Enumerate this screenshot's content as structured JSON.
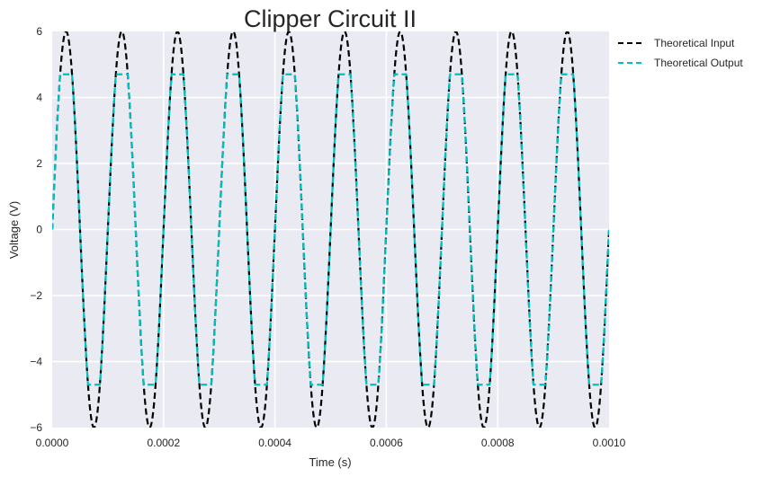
{
  "chart_data": {
    "type": "line",
    "title": "Clipper Circuit II",
    "xlabel": "Time (s)",
    "ylabel": "Voltage (V)",
    "xlim": [
      0,
      0.001
    ],
    "ylim": [
      -6,
      6
    ],
    "xticks": [
      "0.0000",
      "0.0002",
      "0.0004",
      "0.0006",
      "0.0008",
      "0.0010"
    ],
    "yticks": [
      "6",
      "4",
      "2",
      "0",
      "−2",
      "−4",
      "−6"
    ],
    "grid": true,
    "legend_position": "outside-top-right",
    "signal": {
      "amplitude": 6,
      "frequency_hz": 10000,
      "clip_level": 4.7
    },
    "series": [
      {
        "name": "Theoretical Input",
        "color": "#000000",
        "style": "dashed"
      },
      {
        "name": "Theoretical Output",
        "color": "#00bfbf",
        "style": "dashed"
      }
    ]
  }
}
